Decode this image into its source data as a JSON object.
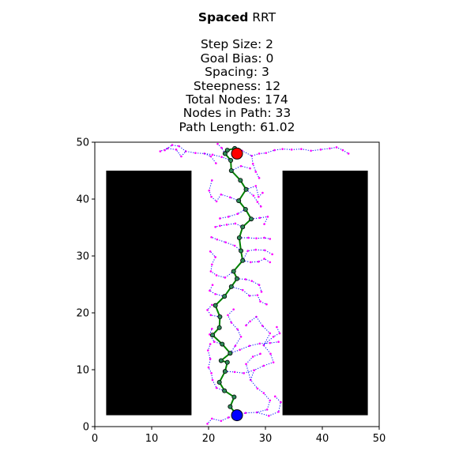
{
  "title": {
    "bold_word": "Spaced",
    "rest": " RRT",
    "lines": [
      "Step Size: 2",
      "Goal Bias: 0",
      "Spacing: 3",
      "Steepness: 12",
      "Total Nodes: 174",
      "Nodes in Path: 33",
      "Path Length: 61.02"
    ]
  },
  "chart_data": {
    "type": "scatter",
    "title": "Spaced RRT",
    "xlim": [
      0,
      50
    ],
    "ylim": [
      0,
      50
    ],
    "xticks": [
      0,
      10,
      20,
      30,
      40,
      50
    ],
    "yticks": [
      0,
      10,
      20,
      30,
      40,
      50
    ],
    "grid": false,
    "colors": {
      "obstacle": "#000000",
      "tree_edge": "#0000ff",
      "tree_node": "#ff00ff",
      "path_line": "#008000",
      "path_node": "#2e8b57",
      "start": "#0000ff",
      "goal": "#ff0000"
    },
    "obstacles": [
      {
        "x": [
          2,
          17
        ],
        "y": [
          2,
          45
        ]
      },
      {
        "x": [
          33,
          48
        ],
        "y": [
          2,
          45
        ]
      }
    ],
    "start": [
      25,
      2
    ],
    "goal": [
      25,
      48
    ],
    "path": [
      [
        25,
        2
      ],
      [
        23.8,
        3.5
      ],
      [
        24.5,
        5.2
      ],
      [
        22.8,
        6.3
      ],
      [
        21.9,
        7.8
      ],
      [
        22.9,
        9.7
      ],
      [
        23.3,
        11.3
      ],
      [
        22.2,
        11.6
      ],
      [
        23.8,
        12.9
      ],
      [
        22.4,
        14.5
      ],
      [
        20.7,
        16.1
      ],
      [
        21.9,
        17.4
      ],
      [
        22.0,
        19.3
      ],
      [
        21.2,
        21.3
      ],
      [
        22.8,
        22.9
      ],
      [
        24.0,
        24.6
      ],
      [
        25.0,
        26.0
      ],
      [
        24.4,
        27.3
      ],
      [
        26.0,
        29.2
      ],
      [
        25.7,
        30.9
      ],
      [
        25.4,
        33.2
      ],
      [
        26.0,
        35.1
      ],
      [
        27.5,
        36.5
      ],
      [
        26.5,
        38.2
      ],
      [
        25.3,
        39.7
      ],
      [
        26.6,
        41.7
      ],
      [
        25.6,
        43.3
      ],
      [
        24.0,
        45.0
      ],
      [
        23.9,
        46.8
      ],
      [
        22.9,
        48.0
      ],
      [
        23.3,
        48.6
      ],
      [
        24.6,
        48.9
      ],
      [
        25,
        48
      ]
    ],
    "tree_branches": [
      [
        [
          25,
          2
        ],
        [
          26.5,
          2.4
        ],
        [
          28.5,
          2.5
        ],
        [
          30.3,
          3.0
        ],
        [
          30.8,
          4.6
        ],
        [
          29.7,
          5.9
        ],
        [
          28.6,
          6.7
        ],
        [
          27.4,
          8.2
        ],
        [
          28.0,
          9.9
        ],
        [
          29.7,
          10.7
        ],
        [
          31.4,
          11.3
        ],
        [
          30.9,
          12.8
        ],
        [
          29.7,
          14.3
        ],
        [
          30.8,
          16.4
        ],
        [
          29.5,
          17.7
        ],
        [
          28.4,
          19.3
        ]
      ],
      [
        [
          28.5,
          2.5
        ],
        [
          30.6,
          1.9
        ],
        [
          32.3,
          2.6
        ],
        [
          32.7,
          4.3
        ],
        [
          31.7,
          5.3
        ]
      ],
      [
        [
          25,
          2
        ],
        [
          23.5,
          1.6
        ],
        [
          22.2,
          1.0
        ],
        [
          20.6,
          1.4
        ],
        [
          19.8,
          0.5
        ]
      ],
      [
        [
          22.8,
          6.3
        ],
        [
          21.4,
          6.8
        ],
        [
          20.7,
          8.2
        ],
        [
          20.5,
          9.4
        ],
        [
          20.0,
          10.4
        ],
        [
          20.3,
          11.9
        ],
        [
          19.9,
          13.4
        ],
        [
          20.3,
          14.5
        ]
      ],
      [
        [
          22.9,
          9.7
        ],
        [
          24.6,
          9.6
        ],
        [
          26.2,
          9.4
        ],
        [
          28.0,
          9.9
        ]
      ],
      [
        [
          23.8,
          12.9
        ],
        [
          25.5,
          13.5
        ],
        [
          27.2,
          14.2
        ],
        [
          29.0,
          14.6
        ],
        [
          30.8,
          14.7
        ],
        [
          32.3,
          14.9
        ]
      ],
      [
        [
          22.4,
          14.5
        ],
        [
          21.0,
          14.9
        ],
        [
          20.2,
          16.2
        ],
        [
          20.6,
          17.2
        ]
      ],
      [
        [
          23.8,
          12.9
        ],
        [
          24.7,
          14.2
        ],
        [
          25.7,
          15.8
        ],
        [
          25.1,
          17.1
        ],
        [
          24.0,
          18.3
        ],
        [
          23.4,
          19.6
        ],
        [
          24.4,
          20.6
        ]
      ],
      [
        [
          27.4,
          8.2
        ],
        [
          26.6,
          11.0
        ],
        [
          27.8,
          12.3
        ],
        [
          29.1,
          12.8
        ]
      ],
      [
        [
          29.7,
          14.3
        ],
        [
          31.4,
          15.8
        ],
        [
          32.5,
          16.4
        ],
        [
          32.0,
          17.5
        ]
      ],
      [
        [
          28.4,
          19.3
        ],
        [
          27.3,
          18.5
        ],
        [
          26.6,
          17.8
        ]
      ],
      [
        [
          22.0,
          19.3
        ],
        [
          20.4,
          19.6
        ],
        [
          19.8,
          20.5
        ],
        [
          20.6,
          21.4
        ]
      ],
      [
        [
          22.8,
          22.9
        ],
        [
          21.2,
          23.3
        ],
        [
          20.2,
          23.9
        ],
        [
          20.7,
          24.9
        ]
      ],
      [
        [
          24.0,
          24.6
        ],
        [
          26.0,
          24.0
        ],
        [
          27.2,
          23.0
        ],
        [
          28.6,
          23.1
        ],
        [
          29.1,
          22.0
        ],
        [
          30.2,
          21.5
        ]
      ],
      [
        [
          25.0,
          26.0
        ],
        [
          26.5,
          25.9
        ],
        [
          27.6,
          25.6
        ],
        [
          28.9,
          24.9
        ],
        [
          29.3,
          23.7
        ]
      ],
      [
        [
          24.4,
          27.3
        ],
        [
          22.9,
          26.2
        ],
        [
          21.4,
          26.6
        ],
        [
          20.4,
          27.3
        ],
        [
          20.6,
          28.5
        ],
        [
          21.2,
          29.8
        ],
        [
          20.3,
          30.8
        ]
      ],
      [
        [
          26.0,
          29.2
        ],
        [
          27.4,
          28.9
        ],
        [
          28.8,
          29.0
        ],
        [
          29.8,
          29.5
        ],
        [
          30.8,
          28.9
        ]
      ],
      [
        [
          26.0,
          29.2
        ],
        [
          26.9,
          30.9
        ],
        [
          28.3,
          31.1
        ],
        [
          29.9,
          31.0
        ],
        [
          31.2,
          30.3
        ]
      ],
      [
        [
          25.7,
          30.9
        ],
        [
          24.6,
          31.8
        ],
        [
          23.0,
          32.4
        ],
        [
          21.5,
          32.9
        ],
        [
          20.5,
          33.3
        ]
      ],
      [
        [
          25.4,
          33.2
        ],
        [
          27.0,
          33.2
        ],
        [
          28.4,
          33.1
        ],
        [
          29.8,
          33.2
        ],
        [
          30.8,
          33.0
        ]
      ],
      [
        [
          26.0,
          35.1
        ],
        [
          24.7,
          35.7
        ],
        [
          23.2,
          35.5
        ],
        [
          22.0,
          35.3
        ],
        [
          21.2,
          35.1
        ]
      ],
      [
        [
          27.5,
          36.5
        ],
        [
          29.0,
          36.7
        ],
        [
          30.4,
          36.9
        ],
        [
          29.8,
          35.6
        ]
      ],
      [
        [
          26.5,
          38.2
        ],
        [
          25.1,
          37.4
        ],
        [
          23.5,
          36.9
        ],
        [
          22.0,
          36.6
        ]
      ],
      [
        [
          25.3,
          39.7
        ],
        [
          23.8,
          40.3
        ],
        [
          22.2,
          40.8
        ],
        [
          21.4,
          39.6
        ],
        [
          20.5,
          40.4
        ],
        [
          20.1,
          41.5
        ],
        [
          20.6,
          43.3
        ]
      ],
      [
        [
          26.6,
          41.7
        ],
        [
          27.9,
          40.6
        ],
        [
          28.6,
          39.5
        ],
        [
          29.2,
          38.7
        ]
      ],
      [
        [
          26.6,
          41.7
        ],
        [
          28.3,
          42.3
        ],
        [
          28.8,
          40.4
        ],
        [
          29.5,
          41.1
        ]
      ],
      [
        [
          23.9,
          46.8
        ],
        [
          22.3,
          47.4
        ],
        [
          20.7,
          47.8
        ],
        [
          19.3,
          48.0
        ],
        [
          17.7,
          48.1
        ],
        [
          16.0,
          48.4
        ],
        [
          15.2,
          47.5
        ],
        [
          14.3,
          48.7
        ],
        [
          12.8,
          48.9
        ],
        [
          11.5,
          48.4
        ]
      ],
      [
        [
          16.0,
          48.4
        ],
        [
          14.8,
          49.3
        ],
        [
          13.6,
          49.5
        ],
        [
          12.3,
          48.6
        ]
      ],
      [
        [
          19.3,
          48.0
        ],
        [
          20.4,
          47.5
        ],
        [
          21.3,
          46.3
        ]
      ],
      [
        [
          22.9,
          48.0
        ],
        [
          22.3,
          49.0
        ],
        [
          21.6,
          49.7
        ]
      ],
      [
        [
          24.6,
          48.9
        ],
        [
          25.9,
          48.5
        ],
        [
          27.6,
          47.6
        ],
        [
          28.9,
          48.0
        ],
        [
          30.1,
          48.1
        ],
        [
          31.6,
          48.6
        ],
        [
          33.0,
          48.8
        ],
        [
          34.6,
          48.7
        ],
        [
          36.3,
          48.8
        ],
        [
          38.0,
          48.5
        ],
        [
          39.7,
          48.7
        ],
        [
          41.3,
          48.9
        ],
        [
          42.5,
          49.1
        ],
        [
          43.6,
          48.6
        ],
        [
          44.6,
          48.0
        ]
      ],
      [
        [
          27.6,
          47.6
        ],
        [
          27.8,
          46.2
        ],
        [
          28.3,
          44.8
        ],
        [
          28.9,
          43.7
        ]
      ],
      [
        [
          24.0,
          45.0
        ],
        [
          25.7,
          45.8
        ],
        [
          27.3,
          45.4
        ]
      ]
    ]
  }
}
